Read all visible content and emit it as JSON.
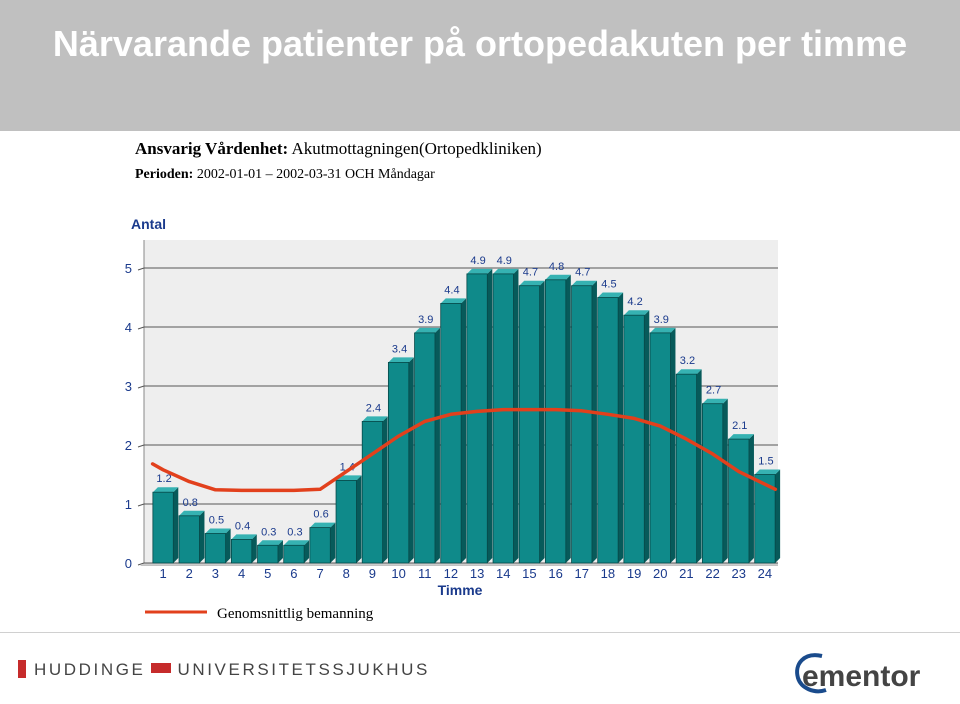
{
  "header": {
    "title": "Närvarande patienter på ortopedakuten per timme"
  },
  "info": {
    "unit_label": "Ansvarig Vårdenhet:",
    "unit_value": "Akutmottagningen(Ortopedkliniken)",
    "period_label": "Perioden:",
    "period_value": "2002-01-01 – 2002-03-31 OCH Måndagar"
  },
  "chart_data": {
    "type": "bar",
    "ylabel": "Antal",
    "xlabel": "Timme",
    "ylim": [
      0,
      5
    ],
    "yticks": [
      0,
      1,
      2,
      3,
      4,
      5
    ],
    "grid": true,
    "categories": [
      "1",
      "2",
      "3",
      "4",
      "5",
      "6",
      "7",
      "8",
      "9",
      "10",
      "11",
      "12",
      "13",
      "14",
      "15",
      "16",
      "17",
      "18",
      "19",
      "20",
      "21",
      "22",
      "23",
      "24"
    ],
    "series": [
      {
        "values": [
          1.2,
          0.8,
          0.5,
          0.4,
          0.3,
          0.3,
          0.6,
          1.4,
          2.4,
          3.4,
          3.9,
          4.4,
          4.9,
          4.9,
          4.7,
          4.8,
          4.7,
          4.5,
          4.2,
          3.9,
          3.2,
          2.7,
          2.1,
          1.5
        ],
        "color": "#0f8a8a"
      }
    ],
    "line": {
      "name": "Genomsnittlig bemanning",
      "color": "#e2401c",
      "x": [
        0.6,
        1,
        2,
        3,
        4,
        5,
        6,
        7,
        8,
        9,
        10,
        11,
        12,
        13,
        14,
        15,
        16,
        17,
        18,
        19,
        20,
        21,
        22,
        23,
        24.4
      ],
      "values": [
        1.68,
        1.58,
        1.38,
        1.24,
        1.23,
        1.23,
        1.23,
        1.25,
        1.55,
        1.85,
        2.15,
        2.4,
        2.52,
        2.57,
        2.6,
        2.6,
        2.6,
        2.58,
        2.52,
        2.45,
        2.32,
        2.1,
        1.85,
        1.55,
        1.25
      ]
    },
    "legend": "bottom-left"
  },
  "footer": {
    "hospital_name": "HUDDINGE UNIVERSITETSSJUKHUS",
    "company_logo": "ementor",
    "hospital_accent": "#c62b2b",
    "company_colors": [
      "#1a4b8c",
      "#444444"
    ]
  }
}
